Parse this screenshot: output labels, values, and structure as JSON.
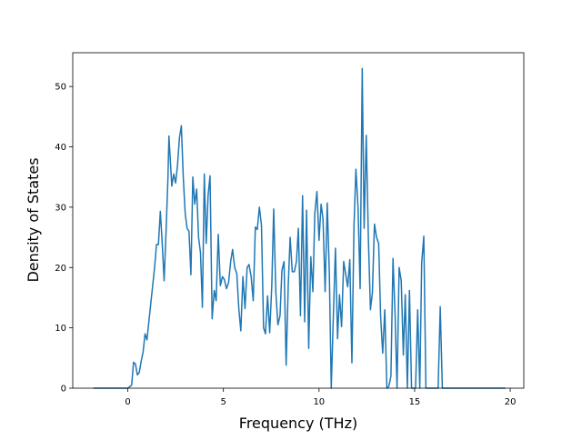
{
  "chart_data": {
    "type": "line",
    "xlabel": "Frequency (THz)",
    "ylabel": "Density of States",
    "xlim": [
      -2.88,
      20.71
    ],
    "ylim": [
      0,
      55.6
    ],
    "xticks": [
      0,
      5,
      10,
      15,
      20
    ],
    "yticks": [
      0,
      10,
      20,
      30,
      40,
      50
    ],
    "color": "#1f77b4",
    "x": [
      -1.8,
      0,
      0.2,
      0.3,
      0.4,
      0.5,
      0.6,
      0.7,
      0.8,
      0.9,
      1.0,
      1.1,
      1.2,
      1.3,
      1.4,
      1.5,
      1.6,
      1.7,
      1.8,
      1.9,
      2.0,
      2.1,
      2.15,
      2.3,
      2.4,
      2.5,
      2.6,
      2.7,
      2.8,
      2.9,
      3.0,
      3.1,
      3.2,
      3.3,
      3.4,
      3.5,
      3.6,
      3.7,
      3.8,
      3.9,
      4.0,
      4.1,
      4.2,
      4.3,
      4.41,
      4.52,
      4.62,
      4.73,
      4.84,
      4.95,
      5.05,
      5.16,
      5.27,
      5.38,
      5.48,
      5.59,
      5.7,
      5.81,
      5.91,
      6.02,
      6.13,
      6.24,
      6.34,
      6.45,
      6.56,
      6.67,
      6.77,
      6.88,
      6.99,
      7.1,
      7.2,
      7.31,
      7.42,
      7.53,
      7.63,
      7.74,
      7.85,
      7.96,
      8.06,
      8.17,
      8.28,
      8.39,
      8.49,
      8.6,
      8.71,
      8.82,
      8.92,
      9.03,
      9.14,
      9.25,
      9.35,
      9.46,
      9.57,
      9.68,
      9.78,
      9.89,
      10.0,
      10.11,
      10.21,
      10.32,
      10.43,
      10.54,
      10.64,
      10.75,
      10.86,
      10.97,
      11.07,
      11.18,
      11.29,
      11.4,
      11.5,
      11.61,
      11.72,
      11.83,
      11.93,
      12.04,
      12.15,
      12.26,
      12.36,
      12.47,
      12.58,
      12.69,
      12.79,
      12.9,
      13.01,
      13.12,
      13.22,
      13.33,
      13.44,
      13.55,
      13.65,
      13.76,
      13.87,
      13.98,
      14.08,
      14.19,
      14.3,
      14.41,
      14.51,
      14.62,
      14.73,
      14.84,
      14.94,
      15.05,
      15.16,
      15.27,
      15.37,
      15.48,
      15.59,
      16.23,
      16.34,
      16.45,
      19.75
    ],
    "values": [
      0,
      0,
      0.5,
      4.3,
      4,
      2.2,
      2.6,
      4.5,
      6,
      9,
      8,
      11,
      14,
      17,
      20,
      23.8,
      23.8,
      29.3,
      24,
      17.8,
      26,
      35,
      41.8,
      33.5,
      35.5,
      34,
      37,
      41.5,
      43.5,
      35,
      29,
      26.5,
      26,
      18.8,
      35,
      30.5,
      33,
      25,
      22.5,
      13.4,
      35.5,
      24,
      32,
      35.2,
      11.5,
      16.2,
      14.5,
      25.5,
      17,
      18.5,
      18,
      16.5,
      17.5,
      21,
      23,
      20,
      19,
      13,
      9.5,
      18.5,
      13.2,
      20,
      20.5,
      18.5,
      14.5,
      26.7,
      26.3,
      30,
      27,
      10,
      9,
      15.3,
      9.2,
      17,
      29.7,
      16,
      10.5,
      12,
      19.5,
      21,
      3.8,
      17,
      25,
      19.3,
      19.3,
      21,
      26.5,
      12,
      31.9,
      11,
      29.5,
      6.6,
      21.8,
      16,
      29,
      32.6,
      24.5,
      30.5,
      28,
      16,
      30.7,
      19,
      0,
      12,
      23.2,
      8.2,
      15.5,
      10.2,
      21,
      18.8,
      16.8,
      21.3,
      4.2,
      27,
      36.3,
      30,
      16.5,
      53,
      26.5,
      41.9,
      25,
      13,
      15.8,
      27.2,
      25,
      24,
      12,
      5.8,
      13,
      0,
      0.3,
      2,
      21.5,
      12,
      0,
      20,
      17.8,
      5.5,
      15.5,
      0,
      16.2,
      0,
      0,
      0,
      13,
      0,
      20.8,
      25.2,
      0,
      0,
      13.5,
      0,
      0
    ]
  }
}
